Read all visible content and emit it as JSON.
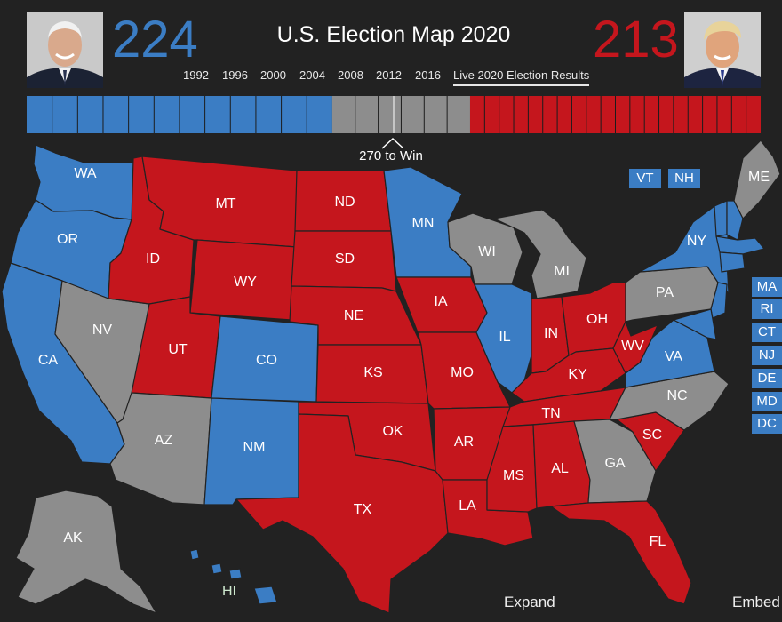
{
  "header": {
    "title": "U.S. Election Map 2020",
    "dem_count": "224",
    "rep_count": "213",
    "years": [
      "1992",
      "1996",
      "2000",
      "2004",
      "2008",
      "2012",
      "2016"
    ],
    "live_label": "Live 2020 Election Results",
    "win_label": "270 to Win"
  },
  "colors": {
    "democrat": "#3b7dc4",
    "republican": "#c5161d",
    "tossup": "#8d8d8d",
    "background": "#222222"
  },
  "ev_bar": {
    "dem": 224,
    "tossup": 101,
    "rep": 213,
    "total": 538
  },
  "states": {
    "WA": "WA",
    "OR": "OR",
    "CA": "CA",
    "NV": "NV",
    "ID": "ID",
    "MT": "MT",
    "WY": "WY",
    "UT": "UT",
    "AZ": "AZ",
    "CO": "CO",
    "NM": "NM",
    "ND": "ND",
    "SD": "SD",
    "NE": "NE",
    "KS": "KS",
    "OK": "OK",
    "TX": "TX",
    "MN": "MN",
    "IA": "IA",
    "MO": "MO",
    "AR": "AR",
    "LA": "LA",
    "WI": "WI",
    "IL": "IL",
    "MI": "MI",
    "IN": "IN",
    "OH": "OH",
    "KY": "KY",
    "TN": "TN",
    "MS": "MS",
    "AL": "AL",
    "GA": "GA",
    "FL": "FL",
    "SC": "SC",
    "NC": "NC",
    "VA": "VA",
    "WV": "WV",
    "PA": "PA",
    "NY": "NY",
    "ME": "ME",
    "AK": "AK",
    "HI": "HI"
  },
  "small_states": {
    "VT": "VT",
    "NH": "NH",
    "MA": "MA",
    "RI": "RI",
    "CT": "CT",
    "NJ": "NJ",
    "DE": "DE",
    "MD": "MD",
    "DC": "DC"
  },
  "footer": {
    "expand": "Expand",
    "embed": "Embed"
  }
}
